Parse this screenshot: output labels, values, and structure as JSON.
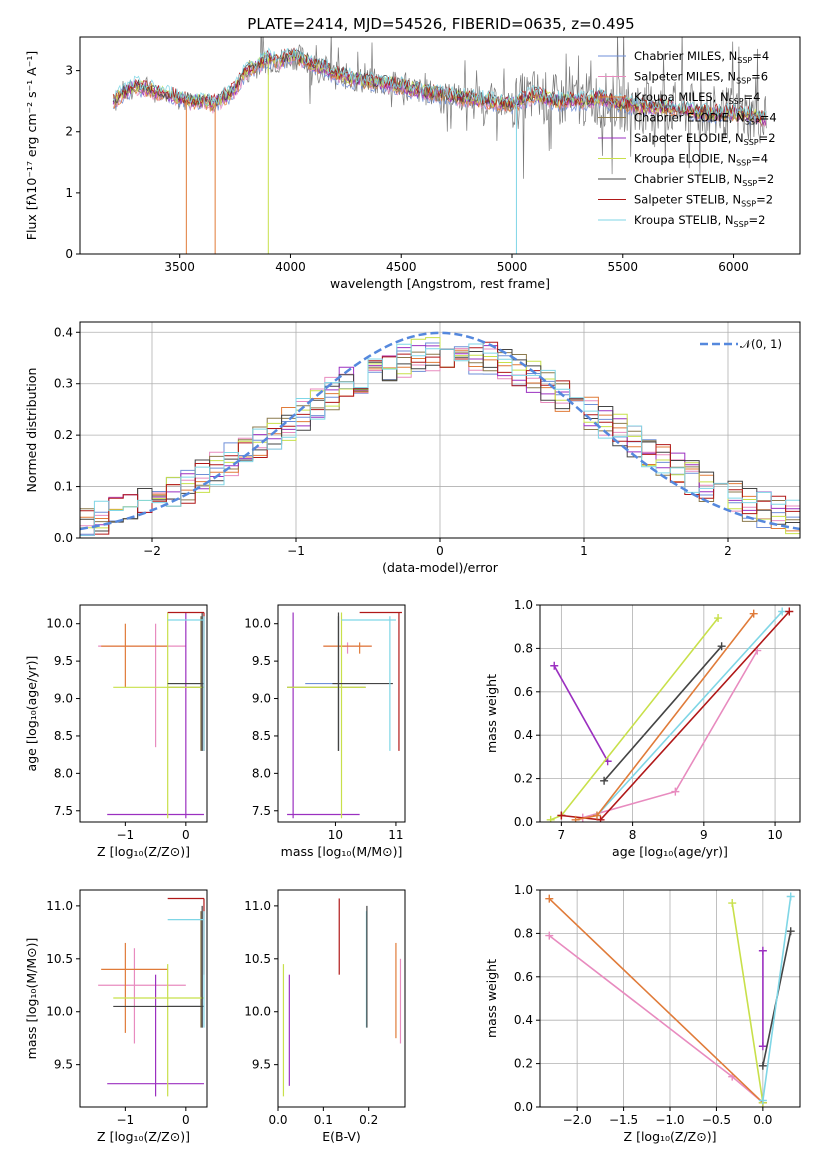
{
  "title": "PLATE=2414, MJD=54526, FIBERID=0635, z=0.495",
  "models": [
    {
      "name": "Chabrier MILES",
      "imf": "Chabrier",
      "lib": "MILES",
      "nssp": "4",
      "color": "#6f8fd8"
    },
    {
      "name": "Salpeter MILES",
      "imf": "Salpeter",
      "lib": "MILES",
      "nssp": "6",
      "color": "#e88bbf"
    },
    {
      "name": "Kroupa MILES",
      "imf": "Kroupa",
      "lib": "MILES",
      "nssp": "4",
      "color": "#e07b39"
    },
    {
      "name": "Chabrier ELODIE",
      "imf": "Chabrier",
      "lib": "ELODIE",
      "nssp": "4",
      "color": "#8c7a4d"
    },
    {
      "name": "Salpeter ELODIE",
      "imf": "Salpeter",
      "lib": "ELODIE",
      "nssp": "2",
      "color": "#9b30c0"
    },
    {
      "name": "Kroupa ELODIE",
      "imf": "Kroupa",
      "lib": "ELODIE",
      "nssp": "4",
      "color": "#c8e04a"
    },
    {
      "name": "Chabrier STELIB",
      "imf": "Chabrier",
      "lib": "STELIB",
      "nssp": "2",
      "color": "#444444"
    },
    {
      "name": "Salpeter STELIB",
      "imf": "Salpeter",
      "lib": "STELIB",
      "nssp": "2",
      "color": "#b01818"
    },
    {
      "name": "Kroupa STELIB",
      "imf": "Kroupa",
      "lib": "STELIB",
      "nssp": "2",
      "color": "#7fd6e6"
    }
  ],
  "chart_data": [
    {
      "id": "spectrum",
      "type": "line",
      "xlabel": "wavelength [Angstrom, rest frame]",
      "ylabel": "Flux [fλ10⁻¹⁷ erg cm⁻² s⁻¹ A⁻¹]",
      "xlim": [
        3050,
        6300
      ],
      "ylim": [
        0,
        3.55
      ],
      "xticks": [
        3500,
        4000,
        4500,
        5000,
        5500,
        6000
      ],
      "yticks": [
        0,
        1,
        2,
        3
      ],
      "grid": false,
      "legend": "top-right",
      "x": [
        3200,
        3250,
        3300,
        3350,
        3400,
        3450,
        3500,
        3550,
        3600,
        3650,
        3700,
        3750,
        3800,
        3850,
        3900,
        3950,
        4000,
        4050,
        4100,
        4150,
        4200,
        4300,
        4400,
        4500,
        4600,
        4700,
        4800,
        4900,
        5000,
        5100,
        5200,
        5300,
        5400,
        5500,
        5600,
        5700,
        5800,
        5900,
        6000,
        6100,
        6150
      ],
      "y": [
        2.5,
        2.65,
        2.75,
        2.7,
        2.65,
        2.6,
        2.55,
        2.5,
        2.5,
        2.45,
        2.55,
        2.7,
        3.0,
        3.1,
        3.2,
        3.15,
        3.25,
        3.2,
        3.1,
        3.05,
        2.95,
        2.85,
        2.8,
        2.75,
        2.65,
        2.6,
        2.55,
        2.5,
        2.45,
        2.6,
        2.5,
        2.5,
        2.55,
        2.45,
        2.4,
        2.4,
        2.35,
        2.3,
        2.3,
        2.25,
        2.2
      ]
    },
    {
      "id": "residuals",
      "type": "line",
      "xlabel": "(data-model)/error",
      "ylabel": "Normed distribution",
      "xlim": [
        -2.5,
        2.5
      ],
      "ylim": [
        0,
        0.42
      ],
      "xticks": [
        -2,
        -1,
        0,
        1,
        2
      ],
      "yticks": [
        0.0,
        0.1,
        0.2,
        0.3,
        0.4
      ],
      "grid": true,
      "legend": "top-right",
      "series": [
        {
          "name": "𝒩(0, 1)",
          "x": "gaussian",
          "mean": 0,
          "sigma": 1
        }
      ]
    },
    {
      "id": "age_vs_z",
      "type": "scatter",
      "xlabel": "Z [log₁₀(Z/Z⊙)]",
      "ylabel": "age  [log₁₀(age/yr)]",
      "xlim": [
        -1.75,
        0.35
      ],
      "ylim": [
        7.35,
        10.25
      ],
      "xticks": [
        -1,
        0
      ],
      "yticks": [
        7.5,
        8.0,
        8.5,
        9.0,
        9.5,
        10.0
      ],
      "grid": false,
      "points": [
        {
          "model": 0,
          "x": 0.27,
          "y": 9.2,
          "x0": -0.3,
          "x1": 0.3,
          "y0": 8.3,
          "y1": 10.1
        },
        {
          "model": 1,
          "x": -0.5,
          "y": 9.7,
          "x0": -1.45,
          "x1": 0.0,
          "y0": 8.35,
          "y1": 10.0
        },
        {
          "model": 2,
          "x": -1.0,
          "y": 9.7,
          "x0": -1.4,
          "x1": -0.3,
          "y0": 9.15,
          "y1": 10.0
        },
        {
          "model": 3,
          "x": 0.25,
          "y": 9.15,
          "x0": -0.3,
          "x1": 0.3,
          "y0": 8.3,
          "y1": 10.1
        },
        {
          "model": 4,
          "x": 0.0,
          "y": 7.45,
          "x0": -1.3,
          "x1": 0.3,
          "y0": 7.4,
          "y1": 10.15
        },
        {
          "model": 5,
          "x": -0.3,
          "y": 9.15,
          "x0": -1.2,
          "x1": 0.3,
          "y0": 7.4,
          "y1": 10.15
        },
        {
          "model": 6,
          "x": 0.27,
          "y": 9.2,
          "x0": -0.3,
          "x1": 0.3,
          "y0": 8.3,
          "y1": 10.15
        },
        {
          "model": 7,
          "x": 0.3,
          "y": 10.15,
          "x0": -0.3,
          "x1": 0.3,
          "y0": 8.3,
          "y1": 10.15
        },
        {
          "model": 8,
          "x": 0.3,
          "y": 10.05,
          "x0": -0.3,
          "x1": 0.3,
          "y0": 8.3,
          "y1": 10.1
        }
      ]
    },
    {
      "id": "age_vs_mass",
      "type": "scatter",
      "xlabel": "mass [log₁₀(M/M⊙)]",
      "ylabel": "",
      "xlim": [
        9.05,
        11.15
      ],
      "ylim": [
        7.35,
        10.25
      ],
      "xticks": [
        10,
        11
      ],
      "yticks": [
        7.5,
        8.0,
        8.5,
        9.0,
        9.5,
        10.0
      ],
      "grid": false,
      "points": [
        {
          "model": 0,
          "x": 10.05,
          "y": 9.2,
          "x0": 9.5,
          "x1": 10.5,
          "y0": 8.3,
          "y1": 10.1
        },
        {
          "model": 1,
          "x": 10.2,
          "y": 9.7,
          "x0": 9.8,
          "x1": 10.6,
          "y0": 9.6,
          "y1": 9.75
        },
        {
          "model": 2,
          "x": 10.4,
          "y": 9.7,
          "x0": 9.8,
          "x1": 10.6,
          "y0": 9.6,
          "y1": 9.75
        },
        {
          "model": 3,
          "x": 10.05,
          "y": 9.15,
          "x0": 9.2,
          "x1": 10.5,
          "y0": 8.3,
          "y1": 10.1
        },
        {
          "model": 4,
          "x": 9.3,
          "y": 7.45,
          "x0": 9.2,
          "x1": 10.4,
          "y0": 7.4,
          "y1": 10.15
        },
        {
          "model": 5,
          "x": 10.1,
          "y": 9.15,
          "x0": 9.2,
          "x1": 10.5,
          "y0": 7.4,
          "y1": 10.15
        },
        {
          "model": 6,
          "x": 10.05,
          "y": 9.2,
          "x0": 9.95,
          "x1": 10.95,
          "y0": 8.3,
          "y1": 10.15
        },
        {
          "model": 7,
          "x": 11.05,
          "y": 10.15,
          "x0": 10.4,
          "x1": 11.1,
          "y0": 8.3,
          "y1": 10.15
        },
        {
          "model": 8,
          "x": 10.9,
          "y": 10.05,
          "x0": 10.1,
          "x1": 11.0,
          "y0": 8.3,
          "y1": 10.1
        }
      ]
    },
    {
      "id": "weights_vs_age",
      "type": "line",
      "xlabel": "age  [log₁₀(age/yr)]",
      "ylabel": "mass weight",
      "xlim": [
        6.7,
        10.35
      ],
      "ylim": [
        0,
        1
      ],
      "xticks": [
        7,
        8,
        9,
        10
      ],
      "yticks": [
        0.0,
        0.2,
        0.4,
        0.6,
        0.8,
        1.0
      ],
      "grid": true,
      "series": [
        {
          "model": 4,
          "x": [
            6.9,
            7.65
          ],
          "y": [
            0.72,
            0.28
          ]
        },
        {
          "model": 1,
          "x": [
            7.3,
            8.6,
            9.75
          ],
          "y": [
            0.02,
            0.14,
            0.79
          ]
        },
        {
          "model": 5,
          "x": [
            6.85,
            7.0,
            9.2
          ],
          "y": [
            0.01,
            0.03,
            0.94
          ]
        },
        {
          "model": 6,
          "x": [
            7.6,
            9.25
          ],
          "y": [
            0.19,
            0.81
          ]
        },
        {
          "model": 8,
          "x": [
            7.5,
            10.1
          ],
          "y": [
            0.03,
            0.97
          ]
        },
        {
          "model": 7,
          "x": [
            7.0,
            7.55,
            10.2
          ],
          "y": [
            0.03,
            0.01,
            0.97
          ]
        },
        {
          "model": 2,
          "x": [
            7.2,
            7.5,
            9.7
          ],
          "y": [
            0.01,
            0.03,
            0.96
          ]
        }
      ]
    },
    {
      "id": "mass_vs_z",
      "type": "scatter",
      "xlabel": "Z [log₁₀(Z/Z⊙)]",
      "ylabel": "mass [log₁₀(M/M⊙)]",
      "xlim": [
        -1.75,
        0.35
      ],
      "ylim": [
        9.1,
        11.15
      ],
      "xticks": [
        -1,
        0
      ],
      "yticks": [
        9.5,
        10.0,
        10.5,
        11.0
      ],
      "grid": false,
      "points": [
        {
          "model": 0,
          "x": 0.27,
          "y": 10.05,
          "x0": -0.3,
          "x1": 0.3,
          "y0": 9.85,
          "y1": 10.95
        },
        {
          "model": 1,
          "x": -0.85,
          "y": 10.25,
          "x0": -1.45,
          "x1": 0.0,
          "y0": 9.7,
          "y1": 10.6
        },
        {
          "model": 2,
          "x": -1.0,
          "y": 10.4,
          "x0": -1.4,
          "x1": -0.3,
          "y0": 9.8,
          "y1": 10.65
        },
        {
          "model": 3,
          "x": 0.25,
          "y": 10.05,
          "x0": -0.3,
          "x1": 0.3,
          "y0": 9.85,
          "y1": 10.95
        },
        {
          "model": 4,
          "x": -0.5,
          "y": 9.32,
          "x0": -1.3,
          "x1": 0.3,
          "y0": 9.2,
          "y1": 10.35
        },
        {
          "model": 5,
          "x": -0.3,
          "y": 10.13,
          "x0": -1.2,
          "x1": 0.3,
          "y0": 9.2,
          "y1": 10.45
        },
        {
          "model": 6,
          "x": 0.27,
          "y": 10.05,
          "x0": -1.2,
          "x1": 0.3,
          "y0": 9.85,
          "y1": 11.0
        },
        {
          "model": 7,
          "x": 0.3,
          "y": 11.07,
          "x0": -0.3,
          "x1": 0.3,
          "y0": 10.35,
          "y1": 11.07
        },
        {
          "model": 8,
          "x": 0.3,
          "y": 10.87,
          "x0": -0.3,
          "x1": 0.3,
          "y0": 9.85,
          "y1": 10.95
        }
      ]
    },
    {
      "id": "mass_vs_ebv",
      "type": "scatter",
      "xlabel": "E(B-V)",
      "ylabel": "",
      "xlim": [
        0,
        0.28
      ],
      "ylim": [
        9.1,
        11.15
      ],
      "xticks": [
        0.0,
        0.1,
        0.2
      ],
      "yticks": [
        9.5,
        10.0,
        10.5,
        11.0
      ],
      "grid": false,
      "points": [
        {
          "model": 5,
          "x": 0.012,
          "y": 9.8,
          "y0": 9.2,
          "y1": 10.45
        },
        {
          "model": 4,
          "x": 0.025,
          "y": 9.8,
          "y0": 9.3,
          "y1": 10.35
        },
        {
          "model": 7,
          "x": 0.135,
          "y": 10.7,
          "y0": 10.35,
          "y1": 11.07
        },
        {
          "model": 8,
          "x": 0.195,
          "y": 10.4,
          "y0": 9.85,
          "y1": 10.95
        },
        {
          "model": 6,
          "x": 0.196,
          "y": 10.4,
          "y0": 9.85,
          "y1": 11.0
        },
        {
          "model": 2,
          "x": 0.26,
          "y": 10.2,
          "y0": 9.75,
          "y1": 10.65
        },
        {
          "model": 1,
          "x": 0.27,
          "y": 10.1,
          "y0": 9.7,
          "y1": 10.5
        }
      ]
    },
    {
      "id": "weights_vs_z",
      "type": "line",
      "xlabel": "Z [log₁₀(Z/Z⊙)]",
      "ylabel": "mass weight",
      "xlim": [
        -2.4,
        0.4
      ],
      "ylim": [
        0,
        1
      ],
      "xticks": [
        -2.0,
        -1.5,
        -1.0,
        -0.5,
        0.0
      ],
      "yticks": [
        0.0,
        0.2,
        0.4,
        0.6,
        0.8,
        1.0
      ],
      "grid": true,
      "series": [
        {
          "model": 1,
          "x": [
            -2.3,
            -0.33,
            0.0
          ],
          "y": [
            0.79,
            0.14,
            0.02
          ]
        },
        {
          "model": 2,
          "x": [
            -2.3,
            0.0
          ],
          "y": [
            0.96,
            0.02
          ]
        },
        {
          "model": 5,
          "x": [
            -0.33,
            0.0
          ],
          "y": [
            0.94,
            0.02
          ]
        },
        {
          "model": 4,
          "x": [
            0.0,
            0.0
          ],
          "y": [
            0.72,
            0.28
          ]
        },
        {
          "model": 6,
          "x": [
            0.0,
            0.3
          ],
          "y": [
            0.19,
            0.81
          ]
        },
        {
          "model": 8,
          "x": [
            0.0,
            0.3
          ],
          "y": [
            0.03,
            0.97
          ]
        }
      ]
    }
  ]
}
